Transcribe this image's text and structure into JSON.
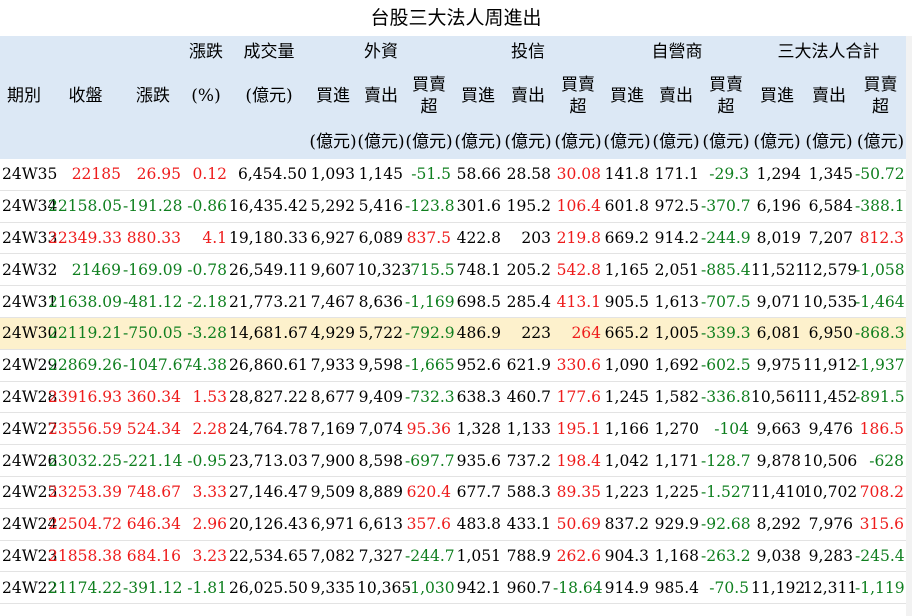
{
  "title": "台股三大法人周進出",
  "colors": {
    "header_bg": "#dce8f5",
    "up": "#ee1c1c",
    "down": "#0f7f1f",
    "highlight": "#fdf1cc"
  },
  "headers": {
    "row1": {
      "change_pct": "漲跌",
      "volume": "成交量",
      "foreign": "外資",
      "trust": "投信",
      "dealer": "自營商",
      "total": "三大法人合計"
    },
    "row2": {
      "period": "期別",
      "close": "收盤",
      "change": "漲跌",
      "change_pct": "(%)",
      "volume": "(億元)",
      "buy": "買進",
      "sell": "賣出",
      "net_line1": "買賣",
      "net_line2": "超"
    },
    "row3": {
      "unit": "(億元)"
    }
  },
  "rows": [
    [
      "24W35",
      "22185",
      "26.95",
      "0.12",
      "6,454.50",
      "1,093",
      "1,145",
      "-51.5",
      "58.66",
      "28.58",
      "30.08",
      "141.8",
      "171.1",
      "-29.3",
      "1,294",
      "1,345",
      "-50.72"
    ],
    [
      "24W34",
      "22158.05",
      "-191.28",
      "-0.86",
      "16,435.42",
      "5,292",
      "5,416",
      "-123.8",
      "301.6",
      "195.2",
      "106.4",
      "601.8",
      "972.5",
      "-370.7",
      "6,196",
      "6,584",
      "-388.1"
    ],
    [
      "24W33",
      "22349.33",
      "880.33",
      "4.1",
      "19,180.33",
      "6,927",
      "6,089",
      "837.5",
      "422.8",
      "203",
      "219.8",
      "669.2",
      "914.2",
      "-244.9",
      "8,019",
      "7,207",
      "812.3"
    ],
    [
      "24W32",
      "21469",
      "-169.09",
      "-0.78",
      "26,549.11",
      "9,607",
      "10,323",
      "-715.5",
      "748.1",
      "205.2",
      "542.8",
      "1,165",
      "2,051",
      "-885.4",
      "11,521",
      "12,579",
      "-1,058"
    ],
    [
      "24W31",
      "21638.09",
      "-481.12",
      "-2.18",
      "21,773.21",
      "7,467",
      "8,636",
      "-1,169",
      "698.5",
      "285.4",
      "413.1",
      "905.5",
      "1,613",
      "-707.5",
      "9,071",
      "10,535",
      "-1,464"
    ],
    [
      "24W30",
      "22119.21",
      "-750.05",
      "-3.28",
      "14,681.67",
      "4,929",
      "5,722",
      "-792.9",
      "486.9",
      "223",
      "264",
      "665.2",
      "1,005",
      "-339.3",
      "6,081",
      "6,950",
      "-868.3"
    ],
    [
      "24W29",
      "22869.26",
      "-1047.67",
      "-4.38",
      "26,860.61",
      "7,933",
      "9,598",
      "-1,665",
      "952.6",
      "621.9",
      "330.6",
      "1,090",
      "1,692",
      "-602.5",
      "9,975",
      "11,912",
      "-1,937"
    ],
    [
      "24W28",
      "23916.93",
      "360.34",
      "1.53",
      "28,827.22",
      "8,677",
      "9,409",
      "-732.3",
      "638.3",
      "460.7",
      "177.6",
      "1,245",
      "1,582",
      "-336.8",
      "10,561",
      "11,452",
      "-891.5"
    ],
    [
      "24W27",
      "23556.59",
      "524.34",
      "2.28",
      "24,764.78",
      "7,169",
      "7,074",
      "95.36",
      "1,328",
      "1,133",
      "195.1",
      "1,166",
      "1,270",
      "-104",
      "9,663",
      "9,476",
      "186.5"
    ],
    [
      "24W26",
      "23032.25",
      "-221.14",
      "-0.95",
      "23,713.03",
      "7,900",
      "8,598",
      "-697.7",
      "935.6",
      "737.2",
      "198.4",
      "1,042",
      "1,171",
      "-128.7",
      "9,878",
      "10,506",
      "-628"
    ],
    [
      "24W25",
      "23253.39",
      "748.67",
      "3.33",
      "27,146.47",
      "9,509",
      "8,889",
      "620.4",
      "677.7",
      "588.3",
      "89.35",
      "1,223",
      "1,225",
      "-1.527",
      "11,410",
      "10,702",
      "708.2"
    ],
    [
      "24W24",
      "22504.72",
      "646.34",
      "2.96",
      "20,126.43",
      "6,971",
      "6,613",
      "357.6",
      "483.8",
      "433.1",
      "50.69",
      "837.2",
      "929.9",
      "-92.68",
      "8,292",
      "7,976",
      "315.6"
    ],
    [
      "24W23",
      "21858.38",
      "684.16",
      "3.23",
      "22,534.65",
      "7,082",
      "7,327",
      "-244.7",
      "1,051",
      "788.9",
      "262.6",
      "904.3",
      "1,168",
      "-263.2",
      "9,038",
      "9,283",
      "-245.4"
    ],
    [
      "24W22",
      "21174.22",
      "-391.12",
      "-1.81",
      "26,025.50",
      "9,335",
      "10,365",
      "-1,030",
      "942.1",
      "960.7",
      "-18.64",
      "914.9",
      "985.4",
      "-70.5",
      "11,192",
      "12,311",
      "-1,119"
    ]
  ]
}
